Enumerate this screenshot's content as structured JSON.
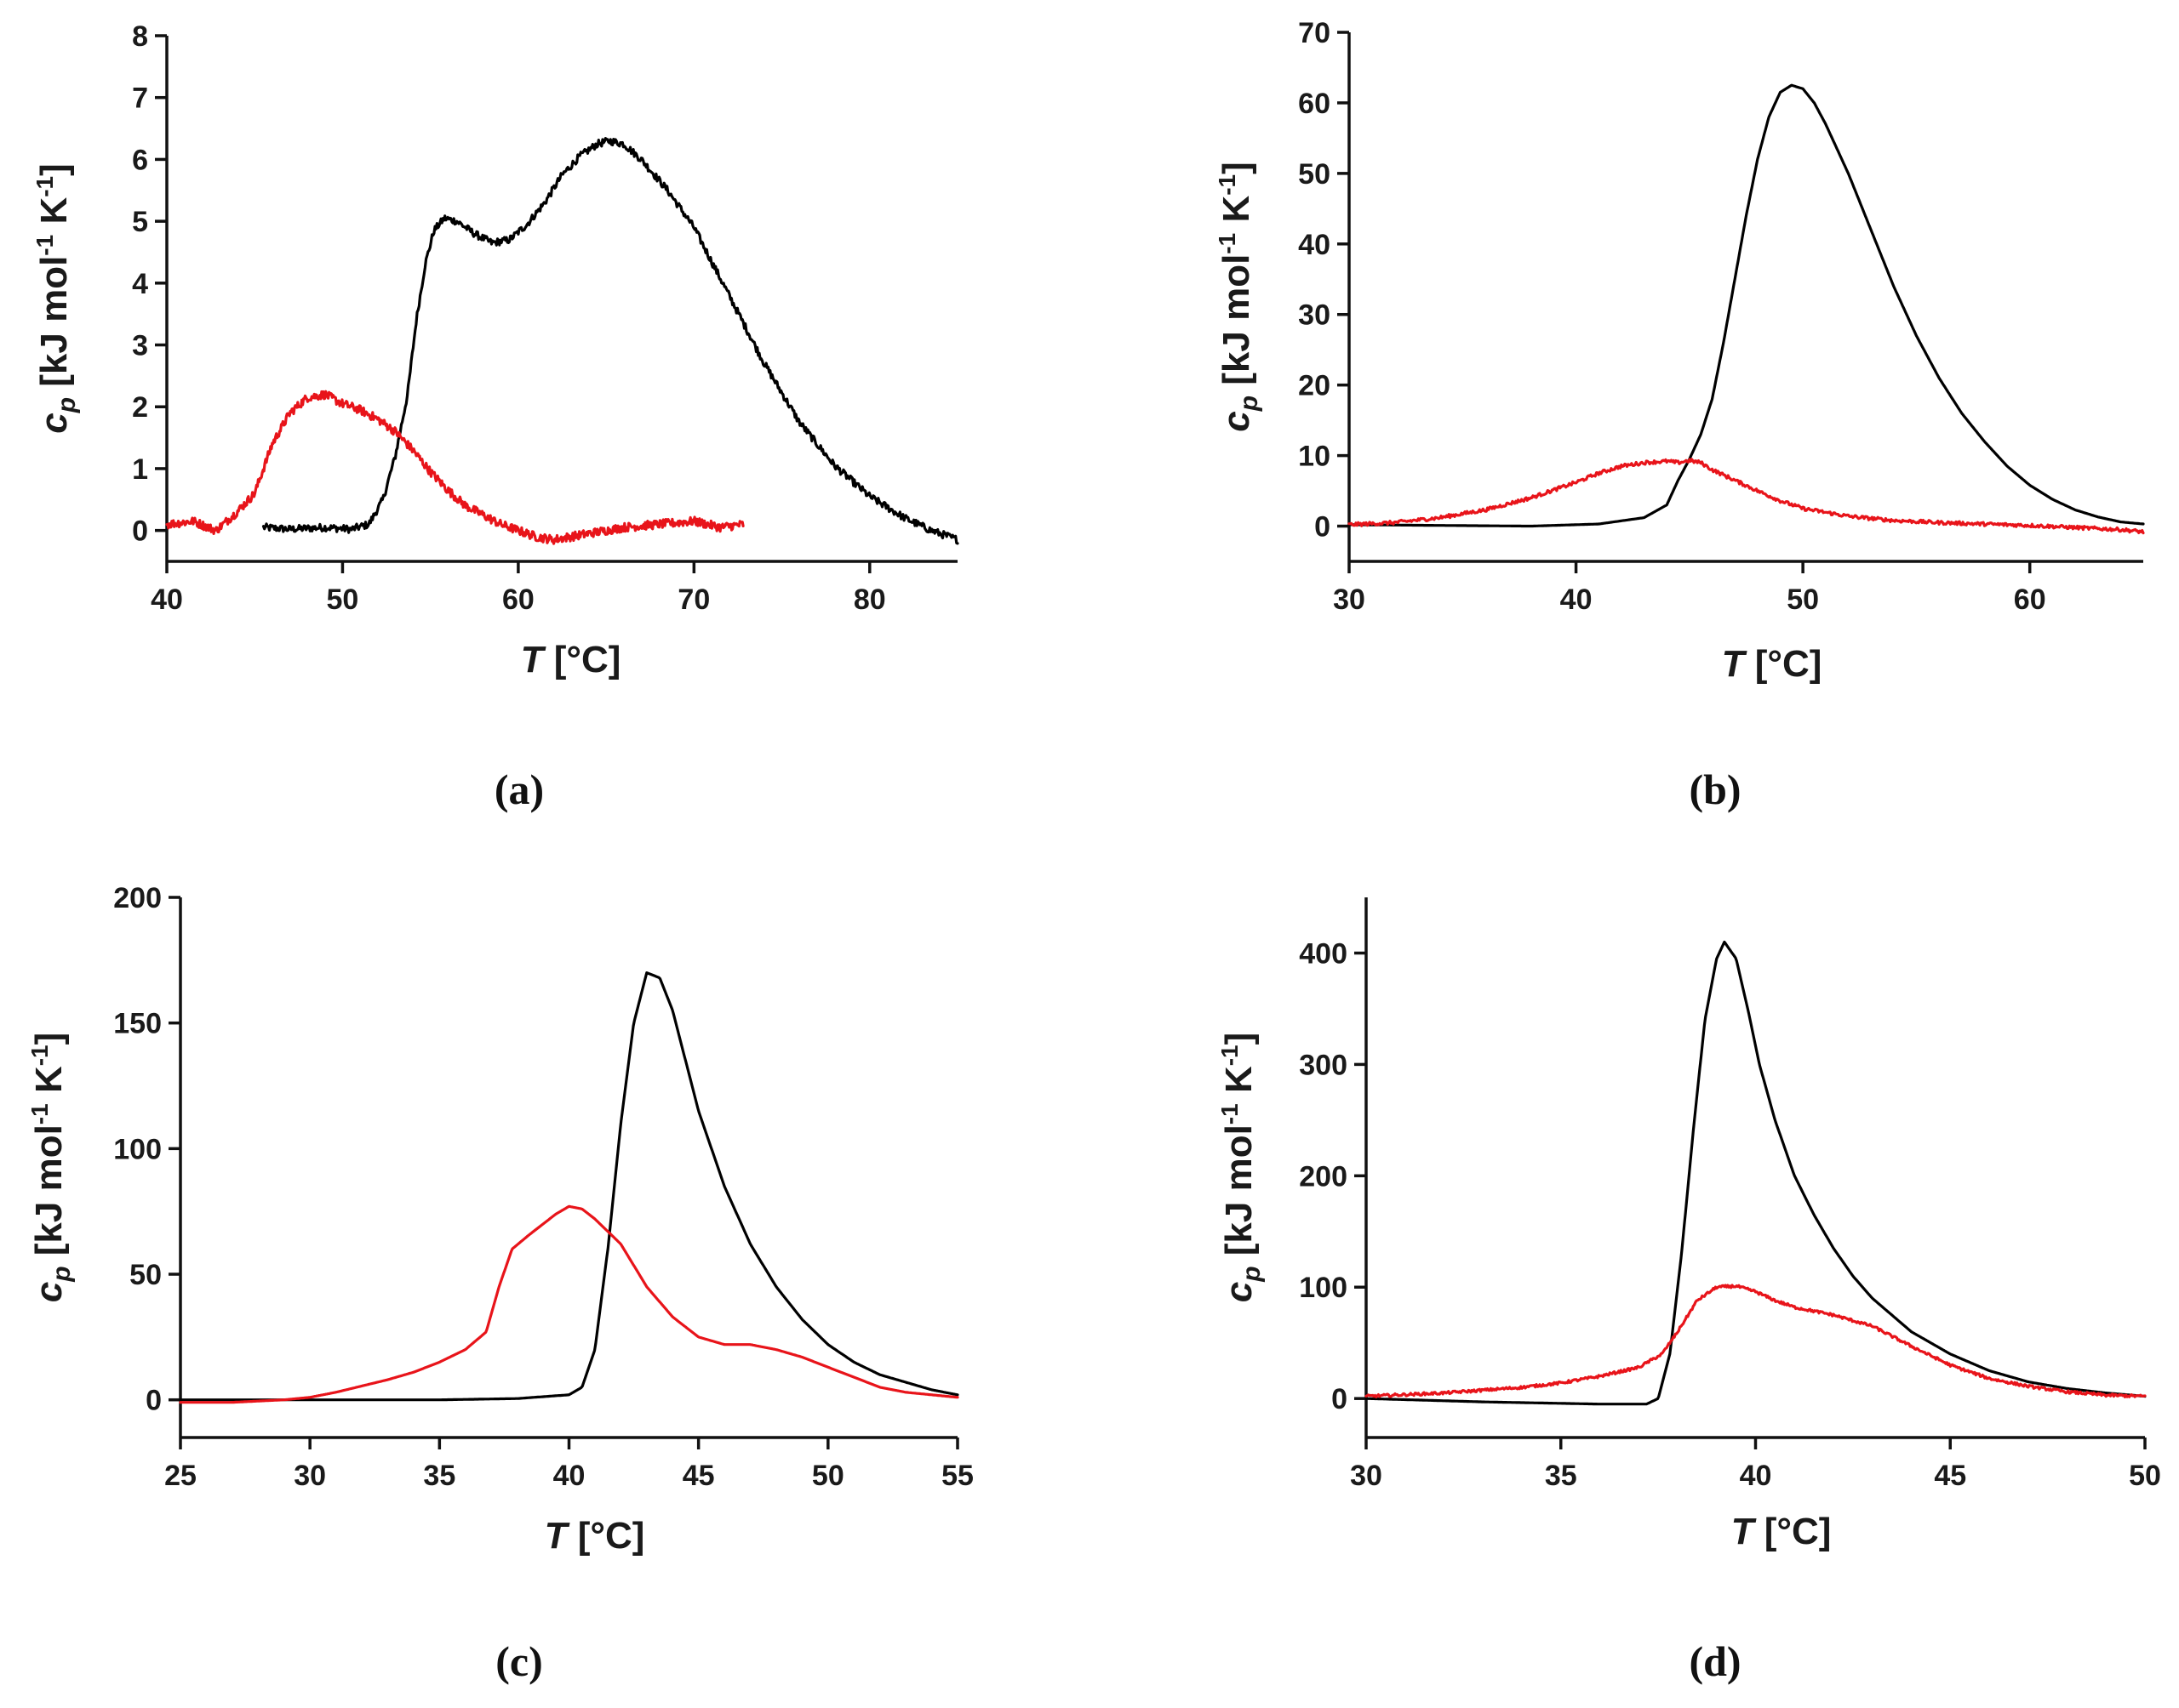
{
  "colors": {
    "black_series": "#000000",
    "red_series": "#e8141a",
    "axis": "#111111"
  },
  "chart_data": [
    {
      "id": "a",
      "type": "line",
      "panel_label": "a",
      "xlabel_var": "T",
      "xlabel_unit": "[°C]",
      "ylabel_var": "c",
      "ylabel_sub": "p",
      "ylabel_unit": "[kJ mol",
      "ylabel_exp1": "-1",
      "ylabel_k": " K",
      "ylabel_exp2": "-1",
      "ylabel_close": "]",
      "xlim": [
        40,
        85
      ],
      "ylim": [
        -0.5,
        8
      ],
      "xticks": [
        40,
        50,
        60,
        70,
        80
      ],
      "yticks": [
        0,
        1,
        2,
        3,
        4,
        5,
        6,
        7,
        8
      ],
      "series": [
        {
          "name": "black",
          "color": "#000000",
          "noise": 0.06,
          "x": [
            45.5,
            47,
            49,
            50.5,
            51.5,
            52.3,
            53,
            53.7,
            54.2,
            54.7,
            55.2,
            55.8,
            56.5,
            57.5,
            58.5,
            59.5,
            60.5,
            61.5,
            62.5,
            63.5,
            64.5,
            65.2,
            66,
            67,
            68.5,
            70,
            72,
            74,
            76,
            78,
            80,
            82,
            83.5,
            85
          ],
          "y": [
            0.05,
            0.02,
            0.05,
            0.02,
            0.1,
            0.5,
            1.2,
            2.2,
            3.4,
            4.3,
            4.85,
            5.05,
            5.0,
            4.8,
            4.65,
            4.7,
            4.95,
            5.3,
            5.75,
            6.05,
            6.25,
            6.3,
            6.25,
            6.0,
            5.5,
            4.9,
            3.8,
            2.7,
            1.75,
            1.05,
            0.55,
            0.2,
            0.0,
            -0.15
          ]
        },
        {
          "name": "red",
          "color": "#e8141a",
          "noise": 0.07,
          "x": [
            40,
            41.5,
            42.8,
            44,
            45,
            46,
            47,
            48,
            49,
            50,
            51,
            52,
            53,
            54,
            55,
            56,
            57,
            58,
            59,
            60,
            61,
            62,
            63,
            64,
            66,
            68,
            70,
            71.5,
            72.8
          ],
          "y": [
            0.1,
            0.15,
            0.0,
            0.3,
            0.6,
            1.4,
            1.9,
            2.15,
            2.2,
            2.05,
            1.95,
            1.8,
            1.6,
            1.3,
            0.95,
            0.65,
            0.4,
            0.25,
            0.1,
            0.0,
            -0.1,
            -0.15,
            -0.1,
            -0.05,
            0.05,
            0.1,
            0.15,
            0.05,
            0.1
          ]
        }
      ]
    },
    {
      "id": "b",
      "type": "line",
      "panel_label": "b",
      "xlabel_var": "T",
      "xlabel_unit": "[°C]",
      "ylabel_var": "c",
      "ylabel_sub": "p",
      "ylabel_unit": "[kJ mol",
      "ylabel_exp1": "-1",
      "ylabel_k": " K",
      "ylabel_exp2": "-1",
      "ylabel_close": "]",
      "xlim": [
        30,
        65
      ],
      "ylim": [
        -5,
        70
      ],
      "xticks": [
        30,
        40,
        50,
        60
      ],
      "yticks": [
        0,
        10,
        20,
        30,
        40,
        50,
        60,
        70
      ],
      "series": [
        {
          "name": "black",
          "color": "#000000",
          "noise": 0.0,
          "x": [
            30,
            34,
            38,
            41,
            43,
            44,
            44.5,
            45,
            45.5,
            46,
            46.5,
            47,
            47.5,
            48,
            48.5,
            49,
            49.5,
            50,
            50.5,
            51,
            52,
            53,
            54,
            55,
            56,
            57,
            58,
            59,
            60,
            61,
            62,
            63,
            64,
            65
          ],
          "y": [
            0.2,
            0.1,
            0.0,
            0.3,
            1.2,
            3.0,
            6.5,
            9.5,
            13,
            18,
            26,
            35,
            44,
            52,
            58,
            61.5,
            62.5,
            62,
            60,
            57,
            50,
            42,
            34,
            27,
            21,
            16,
            12,
            8.5,
            5.8,
            3.8,
            2.3,
            1.3,
            0.6,
            0.3
          ]
        },
        {
          "name": "red",
          "color": "#e8141a",
          "noise": 0.25,
          "x": [
            30,
            32,
            34,
            36,
            38,
            40,
            41,
            42,
            43,
            44,
            44.5,
            45,
            45.5,
            46,
            47,
            48,
            49,
            50,
            52,
            54,
            56,
            58,
            60,
            62,
            64,
            65
          ],
          "y": [
            0.2,
            0.5,
            1.2,
            2.3,
            4.0,
            6.2,
            7.5,
            8.5,
            9.0,
            9.2,
            9.0,
            9.3,
            9.0,
            8.0,
            6.5,
            5.0,
            3.6,
            2.5,
            1.4,
            0.8,
            0.5,
            0.3,
            0.1,
            -0.2,
            -0.5,
            -0.8
          ]
        }
      ]
    },
    {
      "id": "c",
      "type": "line",
      "panel_label": "c",
      "xlabel_var": "T",
      "xlabel_unit": "[°C]",
      "ylabel_var": "c",
      "ylabel_sub": "p",
      "ylabel_unit": "[kJ mol",
      "ylabel_exp1": "-1",
      "ylabel_k": " K",
      "ylabel_exp2": "-1",
      "ylabel_close": "]",
      "xlim": [
        25,
        55
      ],
      "ylim": [
        -15,
        200
      ],
      "xticks": [
        25,
        30,
        35,
        40,
        45,
        50,
        55
      ],
      "yticks": [
        0,
        50,
        100,
        150,
        200
      ],
      "series": [
        {
          "name": "black",
          "color": "#000000",
          "noise": 0.0,
          "x": [
            25,
            30,
            35,
            38,
            40,
            40.5,
            41,
            41.5,
            42,
            42.5,
            43,
            43.5,
            44,
            44.5,
            45,
            46,
            47,
            48,
            49,
            50,
            51,
            52,
            53,
            54,
            55
          ],
          "y": [
            0,
            0,
            0,
            0.5,
            2.0,
            5,
            20,
            60,
            110,
            150,
            170,
            168,
            155,
            135,
            115,
            85,
            62,
            45,
            32,
            22,
            15,
            10,
            7,
            4,
            2
          ]
        },
        {
          "name": "red",
          "color": "#e8141a",
          "noise": 0.0,
          "x": [
            25,
            27,
            29,
            30,
            31,
            32,
            33,
            34,
            35,
            36,
            36.8,
            37.3,
            37.8,
            38.5,
            39,
            39.5,
            40,
            40.5,
            41,
            42,
            43,
            44,
            45,
            46,
            47,
            48,
            49,
            50,
            51,
            52,
            53,
            54,
            55
          ],
          "y": [
            -1,
            -1,
            0,
            1.0,
            3.0,
            5.5,
            8,
            11,
            15,
            20,
            27,
            45,
            60,
            66,
            70,
            74,
            77,
            76,
            72,
            62,
            45,
            33,
            25,
            22,
            22,
            20,
            17,
            13,
            9,
            5,
            3,
            2,
            1
          ]
        }
      ]
    },
    {
      "id": "d",
      "type": "line",
      "panel_label": "d",
      "xlabel_var": "T",
      "xlabel_unit": "[°C]",
      "ylabel_var": "c",
      "ylabel_sub": "p",
      "ylabel_unit": "[kJ mol",
      "ylabel_exp1": "-1",
      "ylabel_k": " K",
      "ylabel_exp2": "-1",
      "ylabel_close": "]",
      "xlim": [
        30,
        50
      ],
      "ylim": [
        -35,
        450
      ],
      "xticks": [
        30,
        35,
        40,
        45,
        50
      ],
      "yticks": [
        0,
        100,
        200,
        300,
        400
      ],
      "series": [
        {
          "name": "black",
          "color": "#000000",
          "noise": 0.0,
          "x": [
            30,
            33,
            36,
            37.2,
            37.5,
            37.8,
            38.1,
            38.4,
            38.7,
            39,
            39.2,
            39.5,
            39.8,
            40.1,
            40.5,
            41,
            41.5,
            42,
            42.5,
            43,
            44,
            45,
            46,
            47,
            48,
            49,
            50
          ],
          "y": [
            0,
            -3,
            -5,
            -5,
            0,
            40,
            130,
            240,
            340,
            395,
            410,
            395,
            350,
            300,
            250,
            200,
            165,
            135,
            110,
            90,
            60,
            40,
            25,
            15,
            9,
            5,
            2
          ]
        },
        {
          "name": "red",
          "color": "#e8141a",
          "noise": 1.2,
          "x": [
            30,
            32,
            34,
            35,
            36,
            37,
            37.6,
            38,
            38.5,
            39,
            39.5,
            40,
            40.5,
            41,
            42,
            43,
            44,
            45,
            46,
            47,
            48,
            49,
            50
          ],
          "y": [
            2,
            5,
            10,
            14,
            20,
            28,
            40,
            60,
            88,
            100,
            101,
            96,
            88,
            82,
            75,
            65,
            47,
            30,
            18,
            11,
            6,
            3,
            2
          ]
        }
      ]
    }
  ]
}
